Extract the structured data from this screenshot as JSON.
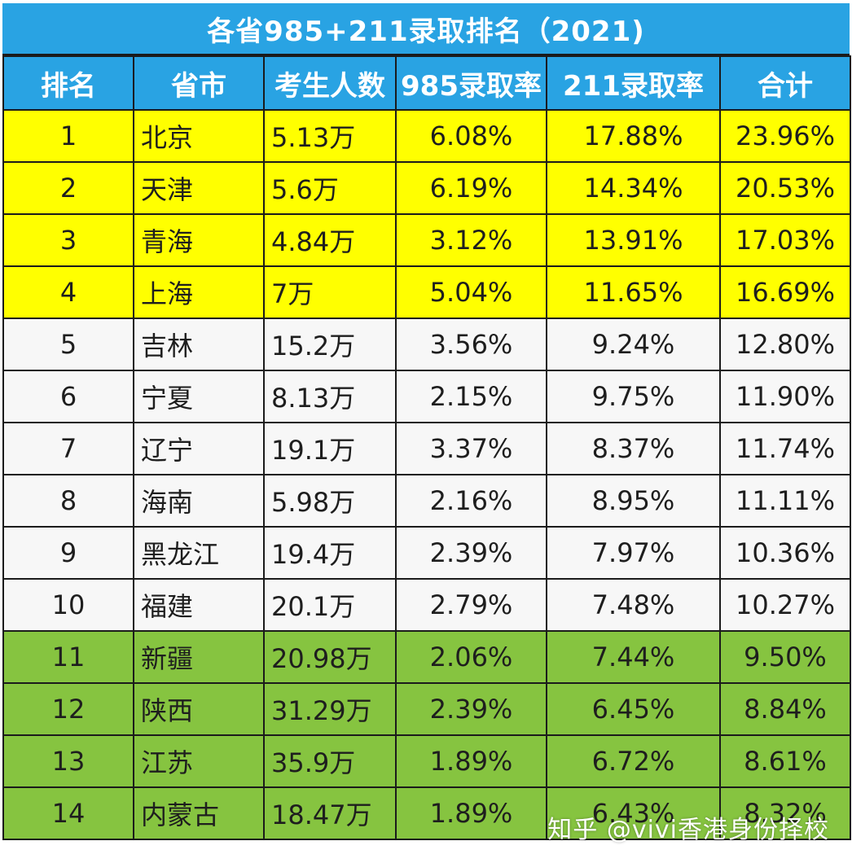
{
  "title": "各省985+211录取排名（2021)",
  "columns": [
    "排名",
    "省市",
    "考生人数",
    "985录取率",
    "211录取率",
    "合计"
  ],
  "rows": [
    {
      "rank": "1",
      "province": "北京",
      "examinees": "5.13万",
      "rate985": "6.08%",
      "rate211": "17.88%",
      "total": "23.96%",
      "band": "yellow"
    },
    {
      "rank": "2",
      "province": "天津",
      "examinees": "5.6万",
      "rate985": "6.19%",
      "rate211": "14.34%",
      "total": "20.53%",
      "band": "yellow"
    },
    {
      "rank": "3",
      "province": "青海",
      "examinees": "4.84万",
      "rate985": "3.12%",
      "rate211": "13.91%",
      "total": "17.03%",
      "band": "yellow"
    },
    {
      "rank": "4",
      "province": "上海",
      "examinees": "7万",
      "rate985": "5.04%",
      "rate211": "11.65%",
      "total": "16.69%",
      "band": "yellow"
    },
    {
      "rank": "5",
      "province": "吉林",
      "examinees": "15.2万",
      "rate985": "3.56%",
      "rate211": "9.24%",
      "total": "12.80%",
      "band": "white"
    },
    {
      "rank": "6",
      "province": "宁夏",
      "examinees": "8.13万",
      "rate985": "2.15%",
      "rate211": "9.75%",
      "total": "11.90%",
      "band": "white"
    },
    {
      "rank": "7",
      "province": "辽宁",
      "examinees": "19.1万",
      "rate985": "3.37%",
      "rate211": "8.37%",
      "total": "11.74%",
      "band": "white"
    },
    {
      "rank": "8",
      "province": "海南",
      "examinees": "5.98万",
      "rate985": "2.16%",
      "rate211": "8.95%",
      "total": "11.11%",
      "band": "white"
    },
    {
      "rank": "9",
      "province": "黑龙江",
      "examinees": "19.4万",
      "rate985": "2.39%",
      "rate211": "7.97%",
      "total": "10.36%",
      "band": "white"
    },
    {
      "rank": "10",
      "province": "福建",
      "examinees": "20.1万",
      "rate985": "2.79%",
      "rate211": "7.48%",
      "total": "10.27%",
      "band": "white"
    },
    {
      "rank": "11",
      "province": "新疆",
      "examinees": "20.98万",
      "rate985": "2.06%",
      "rate211": "7.44%",
      "total": "9.50%",
      "band": "green"
    },
    {
      "rank": "12",
      "province": "陕西",
      "examinees": "31.29万",
      "rate985": "2.39%",
      "rate211": "6.45%",
      "total": "8.84%",
      "band": "green"
    },
    {
      "rank": "13",
      "province": "江苏",
      "examinees": "35.9万",
      "rate985": "1.89%",
      "rate211": "6.72%",
      "total": "8.61%",
      "band": "green"
    },
    {
      "rank": "14",
      "province": "内蒙古",
      "examinees": "18.47万",
      "rate985": "1.89%",
      "rate211": "6.43%",
      "total": "8.32%",
      "band": "green"
    }
  ],
  "watermark": "知乎 @vivi香港身份择校",
  "colors": {
    "header": "#29a3e3",
    "yellow": "#ffff00",
    "white": "#f7f7f7",
    "green": "#86c440"
  }
}
